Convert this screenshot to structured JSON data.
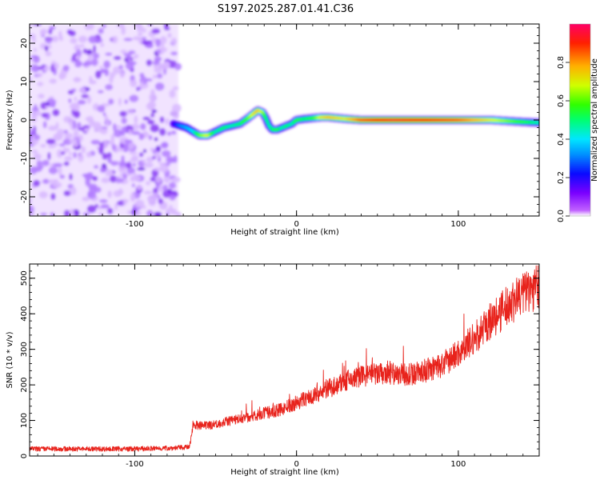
{
  "title": "S197.2025.287.01.41.C36",
  "chart_data": [
    {
      "type": "heatmap",
      "xlabel": "Height of straight line (km)",
      "ylabel": "Frequency (Hz)",
      "xlim": [
        -165,
        150
      ],
      "ylim": [
        -25,
        25
      ],
      "xticks": [
        -100,
        0,
        100
      ],
      "xtick_labels": [
        "-100",
        "0",
        "100"
      ],
      "yticks": [
        -20,
        -10,
        0,
        10,
        20
      ],
      "ytick_labels": [
        "-20",
        "-10",
        "0",
        "10",
        "20"
      ],
      "noise_region_x": [
        -165,
        -73
      ],
      "ridge": {
        "x": [
          -76,
          -72,
          -68,
          -64,
          -60,
          -55,
          -50,
          -45,
          -40,
          -35,
          -30,
          -27,
          -24,
          -21,
          -19,
          -17,
          -15,
          -12,
          -9,
          -6,
          -3,
          0,
          5,
          10,
          15,
          20,
          30,
          40,
          60,
          80,
          100,
          120,
          140,
          150
        ],
        "freq": [
          -1,
          -1.5,
          -2,
          -3,
          -4,
          -4,
          -3,
          -2,
          -1.5,
          -1,
          0.5,
          1.5,
          2.5,
          2,
          0.5,
          -1.5,
          -2.5,
          -2.5,
          -2,
          -1.5,
          -1,
          0,
          0.3,
          0.5,
          0.7,
          0.7,
          0.3,
          0,
          0,
          0,
          0,
          0,
          -0.5,
          -0.7
        ],
        "amplitude": [
          0.2,
          0.3,
          0.35,
          0.4,
          0.6,
          0.7,
          0.45,
          0.5,
          0.45,
          0.5,
          0.6,
          0.7,
          0.75,
          0.65,
          0.5,
          0.45,
          0.5,
          0.55,
          0.45,
          0.5,
          0.45,
          0.55,
          0.5,
          0.55,
          0.7,
          0.75,
          0.7,
          0.85,
          0.95,
          0.9,
          0.85,
          0.7,
          0.55,
          0.45
        ]
      },
      "colorbar": {
        "label": "Normalized spectral amplitude",
        "range": [
          0,
          1
        ],
        "ticks": [
          0.0,
          0.2,
          0.4,
          0.6,
          0.8
        ],
        "tick_labels": [
          "0.0",
          "0.2",
          "0.4",
          "0.6",
          "0.8"
        ]
      }
    },
    {
      "type": "line",
      "xlabel": "Height of straight line (km)",
      "ylabel": "SNR (10 * v/v)",
      "xlim": [
        -165,
        150
      ],
      "ylim": [
        0,
        540
      ],
      "xticks": [
        -100,
        0,
        100
      ],
      "xtick_labels": [
        "-100",
        "0",
        "100"
      ],
      "yticks": [
        0,
        100,
        200,
        300,
        400,
        500
      ],
      "ytick_labels": [
        "0",
        "100",
        "200",
        "300",
        "400",
        "500"
      ],
      "line_color": "#e8231c",
      "series": [
        {
          "name": "SNR",
          "x": [
            -165,
            -140,
            -120,
            -100,
            -80,
            -66,
            -64,
            -60,
            -55,
            -50,
            -40,
            -30,
            -20,
            -10,
            0,
            10,
            20,
            30,
            40,
            50,
            60,
            70,
            80,
            90,
            100,
            110,
            120,
            130,
            140,
            150
          ],
          "values": [
            20,
            20,
            20,
            20,
            22,
            25,
            90,
            85,
            85,
            90,
            100,
            110,
            120,
            130,
            150,
            170,
            190,
            210,
            225,
            230,
            230,
            230,
            240,
            255,
            290,
            330,
            380,
            420,
            460,
            480
          ]
        }
      ]
    }
  ]
}
